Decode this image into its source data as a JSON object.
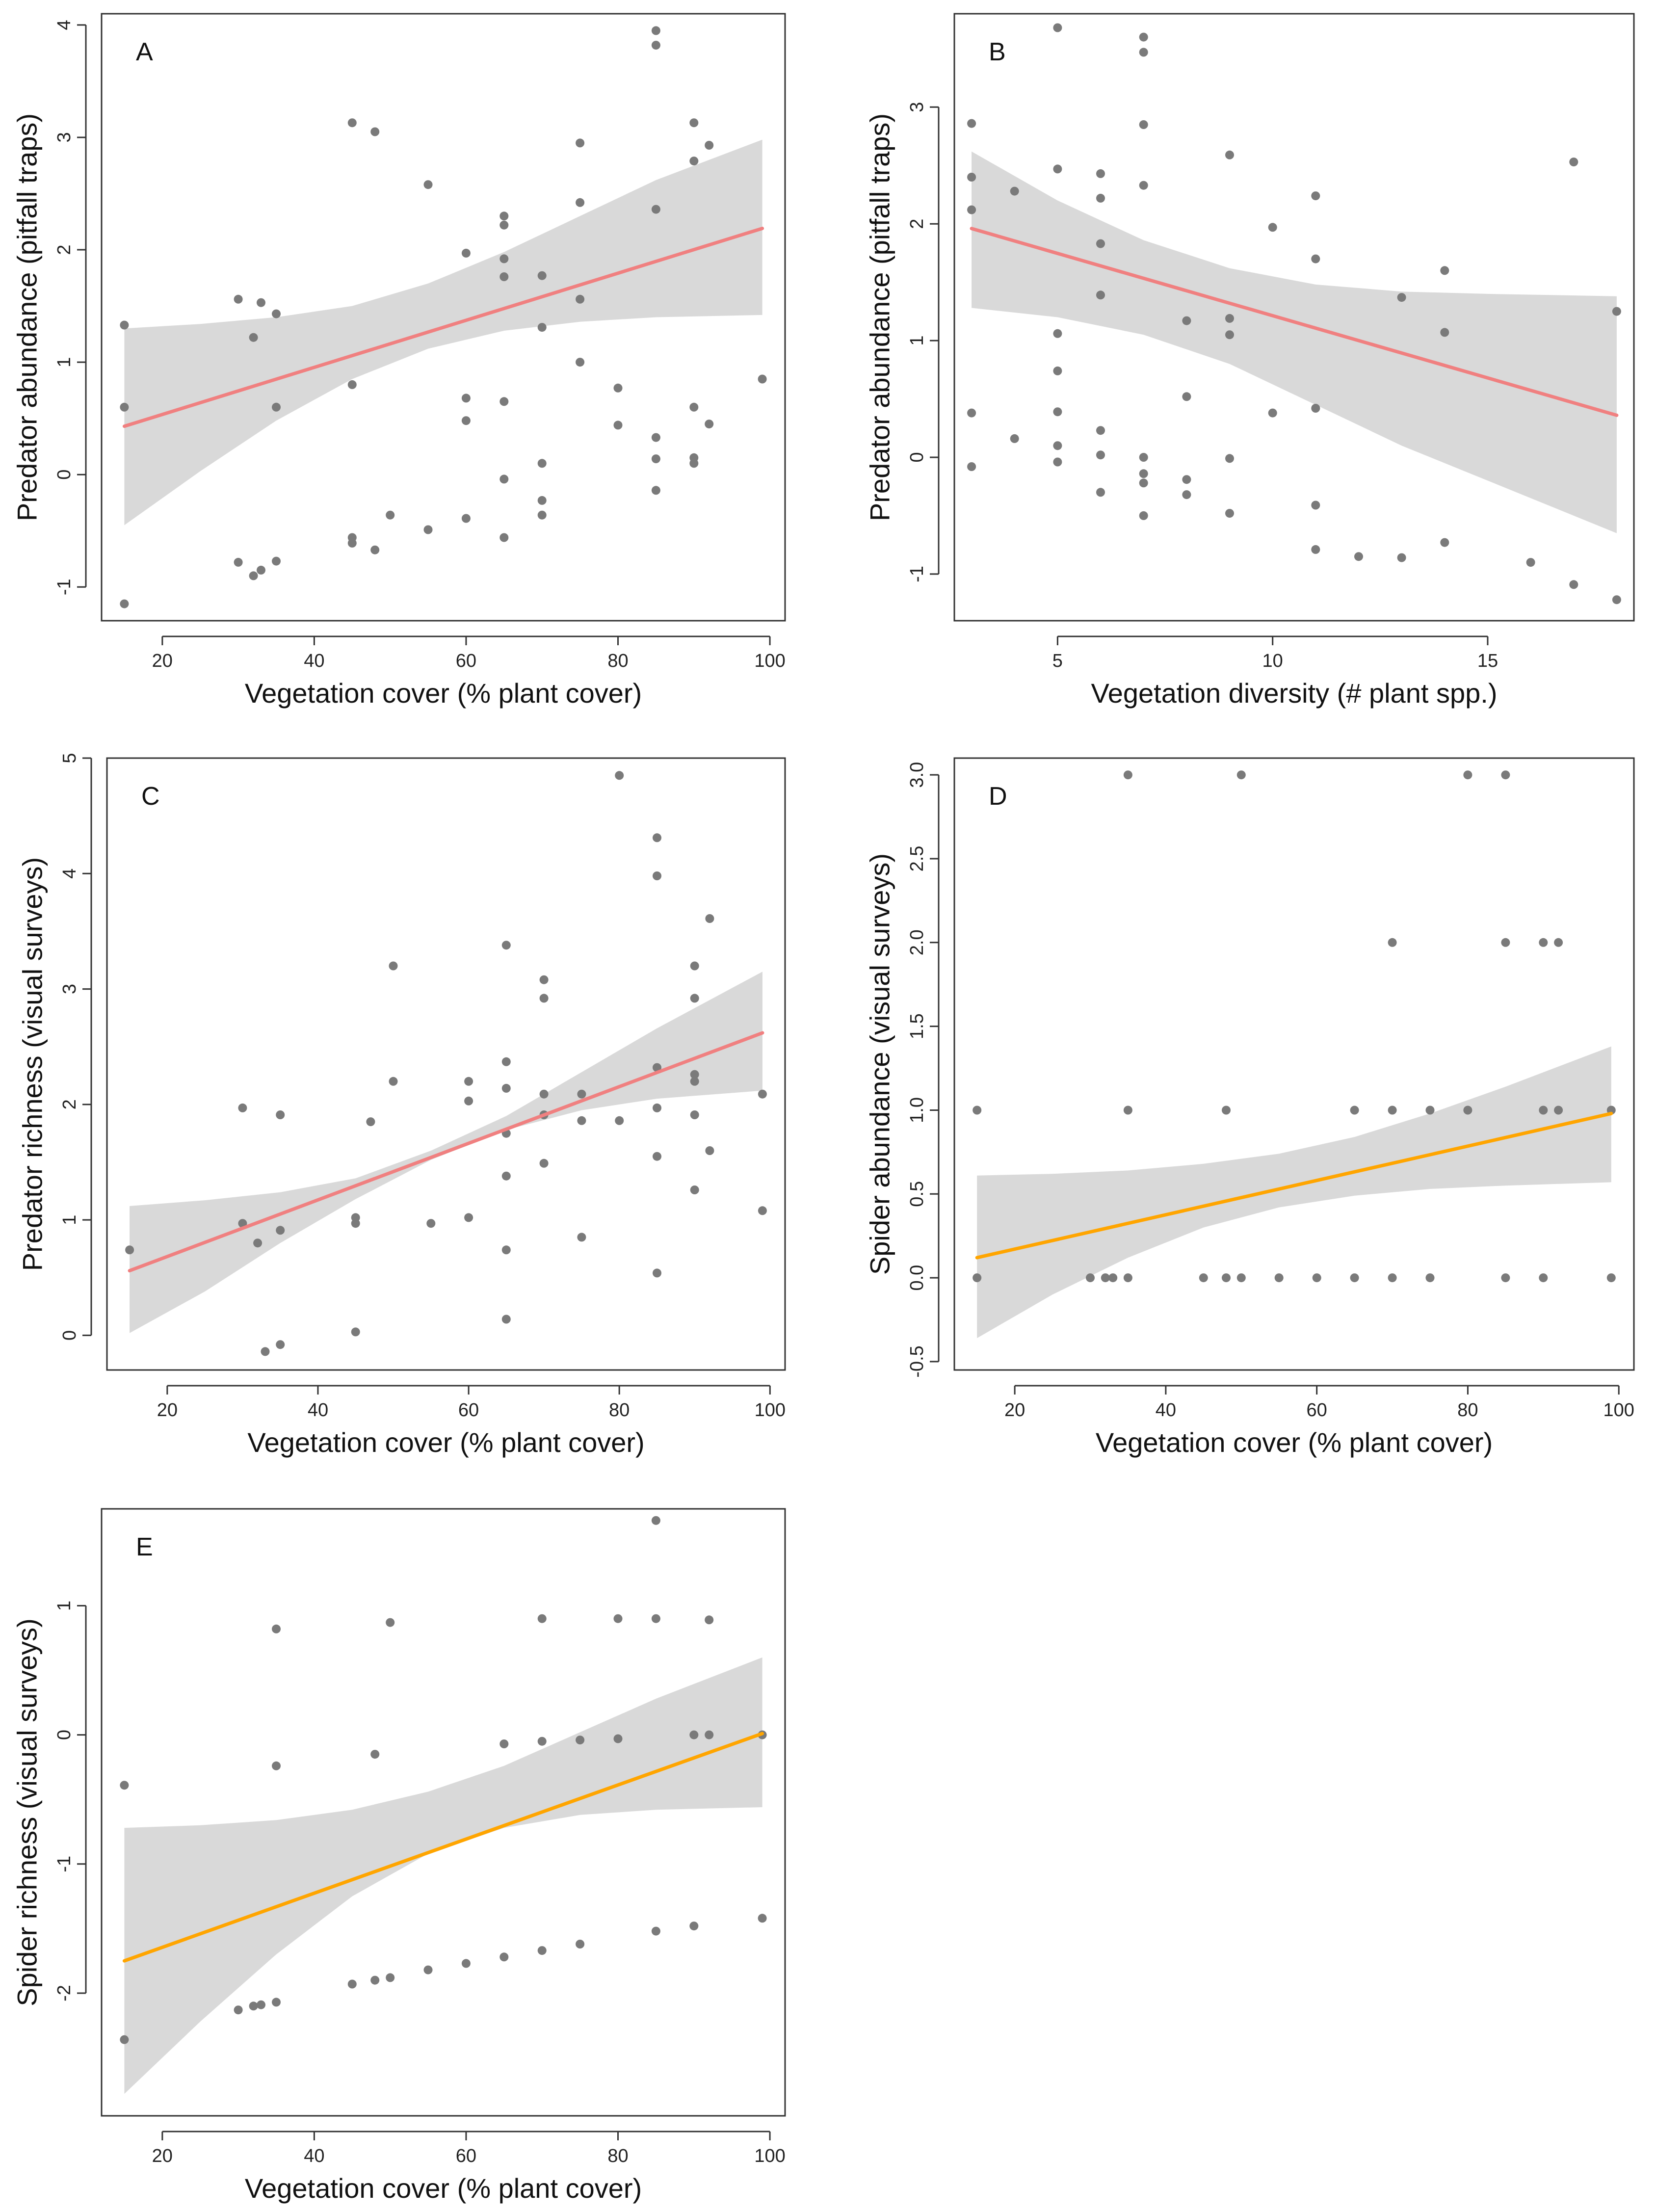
{
  "figure": {
    "panels": [
      "A",
      "B",
      "C",
      "D",
      "E"
    ]
  },
  "colors": {
    "points": "#7a7a7a",
    "band": "#d9d9d9",
    "salmon_line": "#f08080",
    "orange_line": "#ffa500"
  },
  "chart_data": [
    {
      "id": "A",
      "type": "scatter",
      "title": "",
      "xlabel": "Vegetation cover (% plant cover)",
      "ylabel": "Predator abundance (pitfall traps)",
      "xlim": [
        12,
        102
      ],
      "ylim": [
        -1.3,
        4.1
      ],
      "xticks": [
        20,
        40,
        60,
        80,
        100
      ],
      "yticks": [
        -1,
        0,
        1,
        2,
        3,
        4
      ],
      "line_color": "salmon_line",
      "fit": {
        "x": [
          15,
          99
        ],
        "y": [
          0.43,
          2.19
        ]
      },
      "band": {
        "x": [
          15,
          25,
          35,
          45,
          55,
          65,
          75,
          85,
          99
        ],
        "lower": [
          -0.45,
          0.03,
          0.48,
          0.85,
          1.12,
          1.28,
          1.36,
          1.4,
          1.42
        ],
        "upper": [
          1.3,
          1.34,
          1.4,
          1.5,
          1.7,
          1.98,
          2.3,
          2.62,
          2.98
        ]
      },
      "points": [
        [
          15,
          1.33
        ],
        [
          15,
          0.6
        ],
        [
          15,
          -1.15
        ],
        [
          30,
          1.56
        ],
        [
          32,
          1.22
        ],
        [
          33,
          1.53
        ],
        [
          35,
          1.43
        ],
        [
          35,
          0.6
        ],
        [
          30,
          -0.78
        ],
        [
          32,
          -0.9
        ],
        [
          33,
          -0.85
        ],
        [
          35,
          -0.77
        ],
        [
          45,
          3.13
        ],
        [
          48,
          3.05
        ],
        [
          45,
          0.8
        ],
        [
          45,
          -0.56
        ],
        [
          45,
          -0.61
        ],
        [
          48,
          -0.67
        ],
        [
          50,
          -0.36
        ],
        [
          55,
          -0.49
        ],
        [
          55,
          2.58
        ],
        [
          60,
          1.97
        ],
        [
          60,
          0.68
        ],
        [
          60,
          0.48
        ],
        [
          60,
          -0.39
        ],
        [
          65,
          2.3
        ],
        [
          65,
          2.22
        ],
        [
          65,
          1.92
        ],
        [
          65,
          1.76
        ],
        [
          65,
          0.65
        ],
        [
          65,
          -0.04
        ],
        [
          65,
          -0.56
        ],
        [
          70,
          1.77
        ],
        [
          70,
          1.31
        ],
        [
          70,
          0.1
        ],
        [
          70,
          -0.23
        ],
        [
          70,
          -0.36
        ],
        [
          75,
          2.95
        ],
        [
          75,
          2.42
        ],
        [
          75,
          1.56
        ],
        [
          75,
          1.0
        ],
        [
          80,
          0.77
        ],
        [
          80,
          0.44
        ],
        [
          85,
          3.95
        ],
        [
          85,
          3.82
        ],
        [
          85,
          2.36
        ],
        [
          85,
          0.33
        ],
        [
          85,
          0.14
        ],
        [
          85,
          -0.14
        ],
        [
          90,
          3.13
        ],
        [
          90,
          2.79
        ],
        [
          90,
          0.6
        ],
        [
          90,
          0.15
        ],
        [
          90,
          0.1
        ],
        [
          92,
          2.93
        ],
        [
          92,
          0.45
        ],
        [
          99,
          0.85
        ]
      ]
    },
    {
      "id": "B",
      "type": "scatter",
      "title": "",
      "xlabel": "Vegetation diversity (# plant spp.)",
      "ylabel": "Predator abundance (pitfall traps)",
      "xlim": [
        2.6,
        18.4
      ],
      "ylim": [
        -1.4,
        3.8
      ],
      "xticks": [
        5,
        10,
        15
      ],
      "yticks": [
        -1,
        0,
        1,
        2,
        3
      ],
      "line_color": "salmon_line",
      "fit": {
        "x": [
          3,
          18
        ],
        "y": [
          1.96,
          0.36
        ]
      },
      "band": {
        "x": [
          3,
          5,
          7,
          9,
          11,
          13,
          15,
          18
        ],
        "lower": [
          1.28,
          1.2,
          1.05,
          0.8,
          0.45,
          0.1,
          -0.2,
          -0.65
        ],
        "upper": [
          2.62,
          2.2,
          1.86,
          1.62,
          1.48,
          1.42,
          1.4,
          1.38
        ]
      },
      "points": [
        [
          3,
          2.86
        ],
        [
          3,
          2.4
        ],
        [
          3,
          2.12
        ],
        [
          3,
          0.38
        ],
        [
          3,
          -0.08
        ],
        [
          4,
          2.28
        ],
        [
          4,
          0.16
        ],
        [
          5,
          3.68
        ],
        [
          5,
          2.47
        ],
        [
          5,
          1.06
        ],
        [
          5,
          0.74
        ],
        [
          5,
          0.39
        ],
        [
          5,
          0.1
        ],
        [
          5,
          -0.04
        ],
        [
          6,
          2.43
        ],
        [
          6,
          2.22
        ],
        [
          6,
          1.83
        ],
        [
          6,
          1.39
        ],
        [
          6,
          0.23
        ],
        [
          6,
          0.02
        ],
        [
          6,
          -0.3
        ],
        [
          7,
          3.6
        ],
        [
          7,
          3.47
        ],
        [
          7,
          2.85
        ],
        [
          7,
          2.33
        ],
        [
          7,
          0.0
        ],
        [
          7,
          -0.14
        ],
        [
          7,
          -0.22
        ],
        [
          7,
          -0.5
        ],
        [
          8,
          1.17
        ],
        [
          8,
          0.52
        ],
        [
          8,
          -0.19
        ],
        [
          8,
          -0.32
        ],
        [
          9,
          2.59
        ],
        [
          9,
          1.19
        ],
        [
          9,
          1.05
        ],
        [
          9,
          -0.01
        ],
        [
          9,
          -0.48
        ],
        [
          10,
          1.97
        ],
        [
          10,
          0.38
        ],
        [
          11,
          2.24
        ],
        [
          11,
          1.7
        ],
        [
          11,
          0.42
        ],
        [
          11,
          -0.41
        ],
        [
          11,
          -0.79
        ],
        [
          12,
          -0.85
        ],
        [
          13,
          1.37
        ],
        [
          13,
          -0.86
        ],
        [
          14,
          1.6
        ],
        [
          14,
          1.07
        ],
        [
          14,
          -0.73
        ],
        [
          16,
          -0.9
        ],
        [
          17,
          2.53
        ],
        [
          17,
          -1.09
        ],
        [
          18,
          1.25
        ],
        [
          18,
          -1.22
        ]
      ]
    },
    {
      "id": "C",
      "type": "scatter",
      "title": "",
      "xlabel": "Vegetation cover (% plant cover)",
      "ylabel": "Predator richness (visual surveys)",
      "xlim": [
        12,
        102
      ],
      "ylim": [
        -0.3,
        5.0
      ],
      "xticks": [
        20,
        40,
        60,
        80,
        100
      ],
      "yticks": [
        0,
        1,
        2,
        3,
        4,
        5
      ],
      "line_color": "salmon_line",
      "fit": {
        "x": [
          15,
          99
        ],
        "y": [
          0.56,
          2.62
        ]
      },
      "band": {
        "x": [
          15,
          25,
          35,
          45,
          55,
          65,
          75,
          85,
          99
        ],
        "lower": [
          0.02,
          0.38,
          0.8,
          1.18,
          1.52,
          1.78,
          1.95,
          2.05,
          2.12
        ],
        "upper": [
          1.12,
          1.17,
          1.24,
          1.36,
          1.6,
          1.9,
          2.28,
          2.66,
          3.15
        ]
      },
      "points": [
        [
          15,
          0.74
        ],
        [
          30,
          1.97
        ],
        [
          30,
          0.97
        ],
        [
          32,
          0.8
        ],
        [
          33,
          -0.14
        ],
        [
          35,
          1.91
        ],
        [
          35,
          0.91
        ],
        [
          35,
          -0.08
        ],
        [
          45,
          1.02
        ],
        [
          45,
          0.97
        ],
        [
          45,
          0.03
        ],
        [
          47,
          1.85
        ],
        [
          50,
          3.2
        ],
        [
          50,
          2.2
        ],
        [
          55,
          0.97
        ],
        [
          60,
          2.2
        ],
        [
          60,
          2.03
        ],
        [
          60,
          1.02
        ],
        [
          65,
          3.38
        ],
        [
          65,
          2.37
        ],
        [
          65,
          2.14
        ],
        [
          65,
          1.75
        ],
        [
          65,
          1.38
        ],
        [
          65,
          0.74
        ],
        [
          65,
          0.14
        ],
        [
          70,
          3.08
        ],
        [
          70,
          2.92
        ],
        [
          70,
          2.09
        ],
        [
          70,
          1.91
        ],
        [
          70,
          1.49
        ],
        [
          75,
          2.09
        ],
        [
          75,
          1.86
        ],
        [
          75,
          0.85
        ],
        [
          80,
          4.85
        ],
        [
          80,
          1.86
        ],
        [
          85,
          4.31
        ],
        [
          85,
          3.98
        ],
        [
          85,
          2.32
        ],
        [
          85,
          1.97
        ],
        [
          85,
          1.55
        ],
        [
          85,
          0.54
        ],
        [
          90,
          3.2
        ],
        [
          90,
          2.92
        ],
        [
          90,
          2.26
        ],
        [
          90,
          2.2
        ],
        [
          90,
          1.91
        ],
        [
          90,
          1.26
        ],
        [
          92,
          3.61
        ],
        [
          92,
          1.6
        ],
        [
          99,
          2.09
        ],
        [
          99,
          1.08
        ]
      ]
    },
    {
      "id": "D",
      "type": "scatter",
      "title": "",
      "xlabel": "Vegetation cover (% plant cover)",
      "ylabel": "Spider abundance (visual surveys)",
      "xlim": [
        12,
        102
      ],
      "ylim": [
        -0.55,
        3.1
      ],
      "xticks": [
        20,
        40,
        60,
        80,
        100
      ],
      "yticks": [
        -0.5,
        0.0,
        0.5,
        1.0,
        1.5,
        2.0,
        2.5,
        3.0
      ],
      "ytick_labels": [
        "-0.5",
        "0.0",
        "0.5",
        "1.0",
        "1.5",
        "2.0",
        "2.5",
        "3.0"
      ],
      "line_color": "orange_line",
      "fit": {
        "x": [
          15,
          99
        ],
        "y": [
          0.12,
          0.98
        ]
      },
      "band": {
        "x": [
          15,
          25,
          35,
          45,
          55,
          65,
          75,
          85,
          99
        ],
        "lower": [
          -0.36,
          -0.1,
          0.12,
          0.3,
          0.42,
          0.49,
          0.53,
          0.55,
          0.57
        ],
        "upper": [
          0.61,
          0.62,
          0.64,
          0.68,
          0.74,
          0.84,
          0.98,
          1.14,
          1.38
        ]
      },
      "points": [
        [
          15,
          1
        ],
        [
          15,
          0
        ],
        [
          30,
          0
        ],
        [
          32,
          0
        ],
        [
          33,
          0
        ],
        [
          35,
          3
        ],
        [
          35,
          1
        ],
        [
          35,
          0
        ],
        [
          45,
          0
        ],
        [
          48,
          1
        ],
        [
          48,
          0
        ],
        [
          50,
          3
        ],
        [
          50,
          0
        ],
        [
          55,
          0
        ],
        [
          60,
          0
        ],
        [
          65,
          1
        ],
        [
          65,
          0
        ],
        [
          70,
          2
        ],
        [
          70,
          1
        ],
        [
          70,
          0
        ],
        [
          75,
          1
        ],
        [
          75,
          0
        ],
        [
          80,
          3
        ],
        [
          80,
          1
        ],
        [
          85,
          3
        ],
        [
          85,
          2
        ],
        [
          85,
          0
        ],
        [
          90,
          2
        ],
        [
          90,
          1
        ],
        [
          90,
          0
        ],
        [
          92,
          2
        ],
        [
          92,
          1
        ],
        [
          99,
          1
        ],
        [
          99,
          0
        ]
      ]
    },
    {
      "id": "E",
      "type": "scatter",
      "title": "",
      "xlabel": "Vegetation cover (% plant cover)",
      "ylabel": "Spider richness (visual surveys)",
      "xlim": [
        12,
        102
      ],
      "ylim": [
        -2.95,
        1.75
      ],
      "xticks": [
        20,
        40,
        60,
        80,
        100
      ],
      "yticks": [
        -2,
        -1,
        0,
        1
      ],
      "line_color": "orange_line",
      "fit": {
        "x": [
          15,
          99
        ],
        "y": [
          -1.75,
          0.01
        ]
      },
      "band": {
        "x": [
          15,
          25,
          35,
          45,
          55,
          65,
          75,
          85,
          99
        ],
        "lower": [
          -2.78,
          -2.22,
          -1.7,
          -1.25,
          -0.92,
          -0.72,
          -0.62,
          -0.58,
          -0.56
        ],
        "upper": [
          -0.72,
          -0.7,
          -0.66,
          -0.58,
          -0.44,
          -0.24,
          0.02,
          0.28,
          0.6
        ]
      },
      "points": [
        [
          15,
          -0.39
        ],
        [
          15,
          -2.36
        ],
        [
          30,
          -2.13
        ],
        [
          32,
          -2.1
        ],
        [
          33,
          -2.09
        ],
        [
          35,
          0.82
        ],
        [
          35,
          -0.24
        ],
        [
          35,
          -2.07
        ],
        [
          45,
          -1.93
        ],
        [
          48,
          -1.9
        ],
        [
          48,
          -0.15
        ],
        [
          50,
          0.87
        ],
        [
          50,
          -1.88
        ],
        [
          55,
          -1.82
        ],
        [
          60,
          -1.77
        ],
        [
          65,
          -0.07
        ],
        [
          65,
          -1.72
        ],
        [
          70,
          0.9
        ],
        [
          70,
          -0.05
        ],
        [
          70,
          -1.67
        ],
        [
          75,
          -0.04
        ],
        [
          75,
          -1.62
        ],
        [
          80,
          0.9
        ],
        [
          80,
          -0.03
        ],
        [
          85,
          1.66
        ],
        [
          85,
          0.9
        ],
        [
          85,
          -1.52
        ],
        [
          90,
          0.0
        ],
        [
          90,
          -1.48
        ],
        [
          92,
          0.89
        ],
        [
          92,
          0.0
        ],
        [
          99,
          0.0
        ],
        [
          99,
          -1.42
        ]
      ]
    }
  ]
}
